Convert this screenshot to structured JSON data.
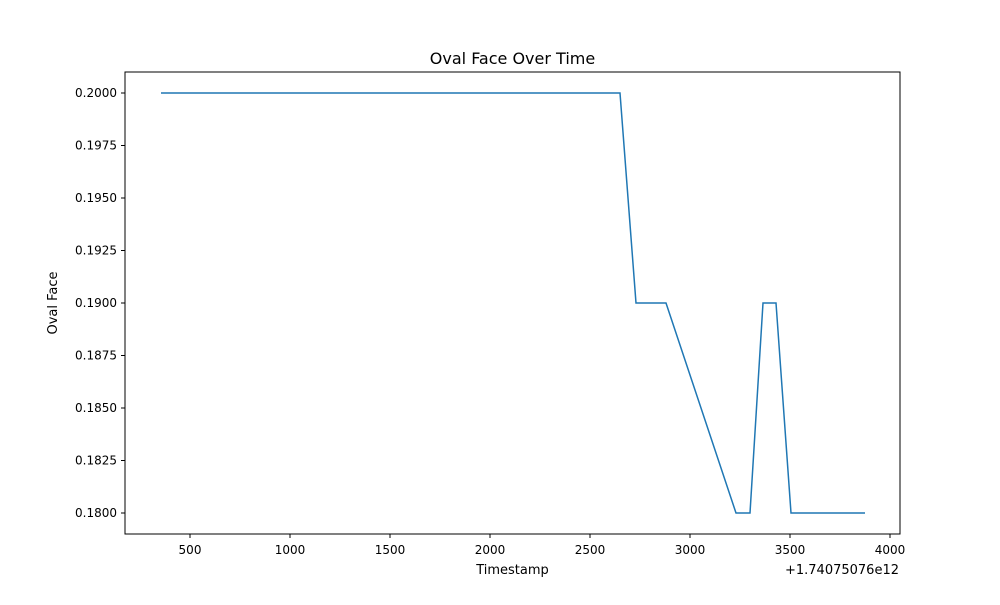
{
  "chart_data": {
    "type": "line",
    "title": "Oval Face Over Time",
    "xlabel": "Timestamp",
    "ylabel": "Oval Face",
    "x_offset_label": "+1.74075076e12",
    "x_offset": 1740750760000,
    "xlim": [
      175,
      4050
    ],
    "ylim": [
      0.179,
      0.201
    ],
    "x_ticks": [
      500,
      1000,
      1500,
      2000,
      2500,
      3000,
      3500,
      4000
    ],
    "x_tick_labels": [
      "500",
      "1000",
      "1500",
      "2000",
      "2500",
      "3000",
      "3500",
      "4000"
    ],
    "y_ticks": [
      0.18,
      0.1825,
      0.185,
      0.1875,
      0.19,
      0.1925,
      0.195,
      0.1975,
      0.2
    ],
    "y_tick_labels": [
      "0.1800",
      "0.1825",
      "0.1850",
      "0.1875",
      "0.1900",
      "0.1925",
      "0.1950",
      "0.1975",
      "0.2000"
    ],
    "grid": false,
    "legend": "none",
    "series": [
      {
        "color": "#1f77b4",
        "x": [
          355,
          2650,
          2730,
          2880,
          3230,
          3300,
          3365,
          3430,
          3505,
          3875
        ],
        "y": [
          0.2,
          0.2,
          0.19,
          0.19,
          0.18,
          0.18,
          0.19,
          0.19,
          0.18,
          0.18
        ]
      }
    ]
  }
}
